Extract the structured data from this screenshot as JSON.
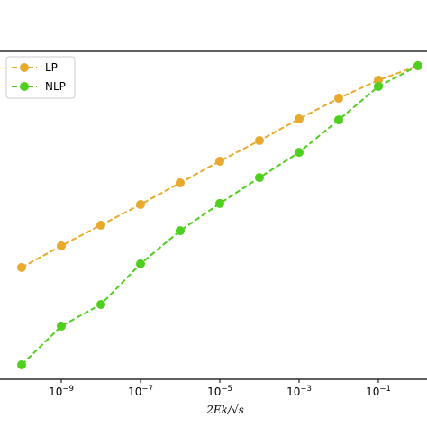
{
  "chart_data": {
    "type": "line",
    "x_label": "2Ek/√s",
    "x": [
      1e-10,
      1e-09,
      1e-08,
      1e-07,
      1e-06,
      1e-05,
      0.0001,
      0.001,
      0.01,
      0.1,
      1
    ],
    "series": [
      {
        "name": "LP",
        "color": "#e8a92c",
        "values": [
          0.341,
          0.407,
          0.47,
          0.533,
          0.599,
          0.665,
          0.728,
          0.794,
          0.857,
          0.912,
          0.956
        ]
      },
      {
        "name": "NLP",
        "color": "#4fcf1e",
        "values": [
          0.044,
          0.162,
          0.228,
          0.352,
          0.453,
          0.536,
          0.615,
          0.692,
          0.791,
          0.893,
          0.956
        ]
      }
    ],
    "xscale": "log",
    "xlim": [
      2.85e-11,
      1.69
    ],
    "ylim": [
      0,
      1
    ],
    "xticks": [
      {
        "value": 1e-09,
        "label": "10",
        "exponent": "−9"
      },
      {
        "value": 1e-07,
        "label": "10",
        "exponent": "−7"
      },
      {
        "value": 1e-05,
        "label": "10",
        "exponent": "−5"
      },
      {
        "value": 0.001,
        "label": "10",
        "exponent": "−3"
      },
      {
        "value": 0.1,
        "label": "10",
        "exponent": "−1"
      }
    ],
    "legend": "upper left"
  }
}
